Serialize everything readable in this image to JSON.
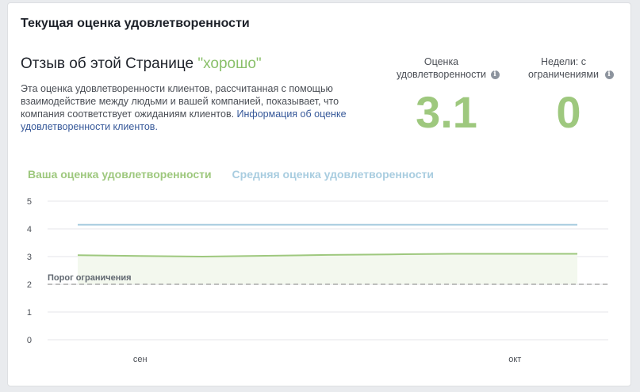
{
  "card": {
    "title": "Текущая оценка удовлетворенности"
  },
  "headline": {
    "prefix": "Отзыв об этой Странице ",
    "rating": "\"хорошо\""
  },
  "description": {
    "text": "Эта оценка удовлетворенности клиентов, рассчитанная с помощью взаимодействие между людьми и вашей компанией, показывает, что компания соответствует ожиданиям клиентов. ",
    "link": "Информация об оценке удовлетворенности клиентов."
  },
  "metrics": {
    "score": {
      "label": "Оценка удовлетворенности",
      "value": "3.1",
      "icon": "info-icon"
    },
    "weeks": {
      "label": "Недели: с ограничениями",
      "value": "0",
      "icon": "info-icon"
    }
  },
  "legend": {
    "own": "Ваша оценка удовлетворенности",
    "avg": "Средняя оценка удовлетворенности"
  },
  "colors": {
    "own": "#9ec87e",
    "avg": "#a9cde0",
    "threshold": "#999999"
  },
  "chart_data": {
    "type": "line",
    "x": [
      "",
      "сен",
      "",
      "",
      "",
      "",
      "",
      "окт",
      ""
    ],
    "ylim": [
      0,
      5
    ],
    "yticks": [
      0,
      1,
      2,
      3,
      4,
      5
    ],
    "series": [
      {
        "name": "Ваша оценка удовлетворенности",
        "values": [
          3.05,
          3.02,
          3.0,
          3.03,
          3.06,
          3.08,
          3.1,
          3.1,
          3.1
        ]
      },
      {
        "name": "Средняя оценка удовлетворенности",
        "values": [
          4.15,
          4.15,
          4.15,
          4.15,
          4.15,
          4.15,
          4.15,
          4.15,
          4.15
        ]
      }
    ],
    "threshold": {
      "label": "Порог ограничения",
      "value": 2
    },
    "grid": true
  }
}
